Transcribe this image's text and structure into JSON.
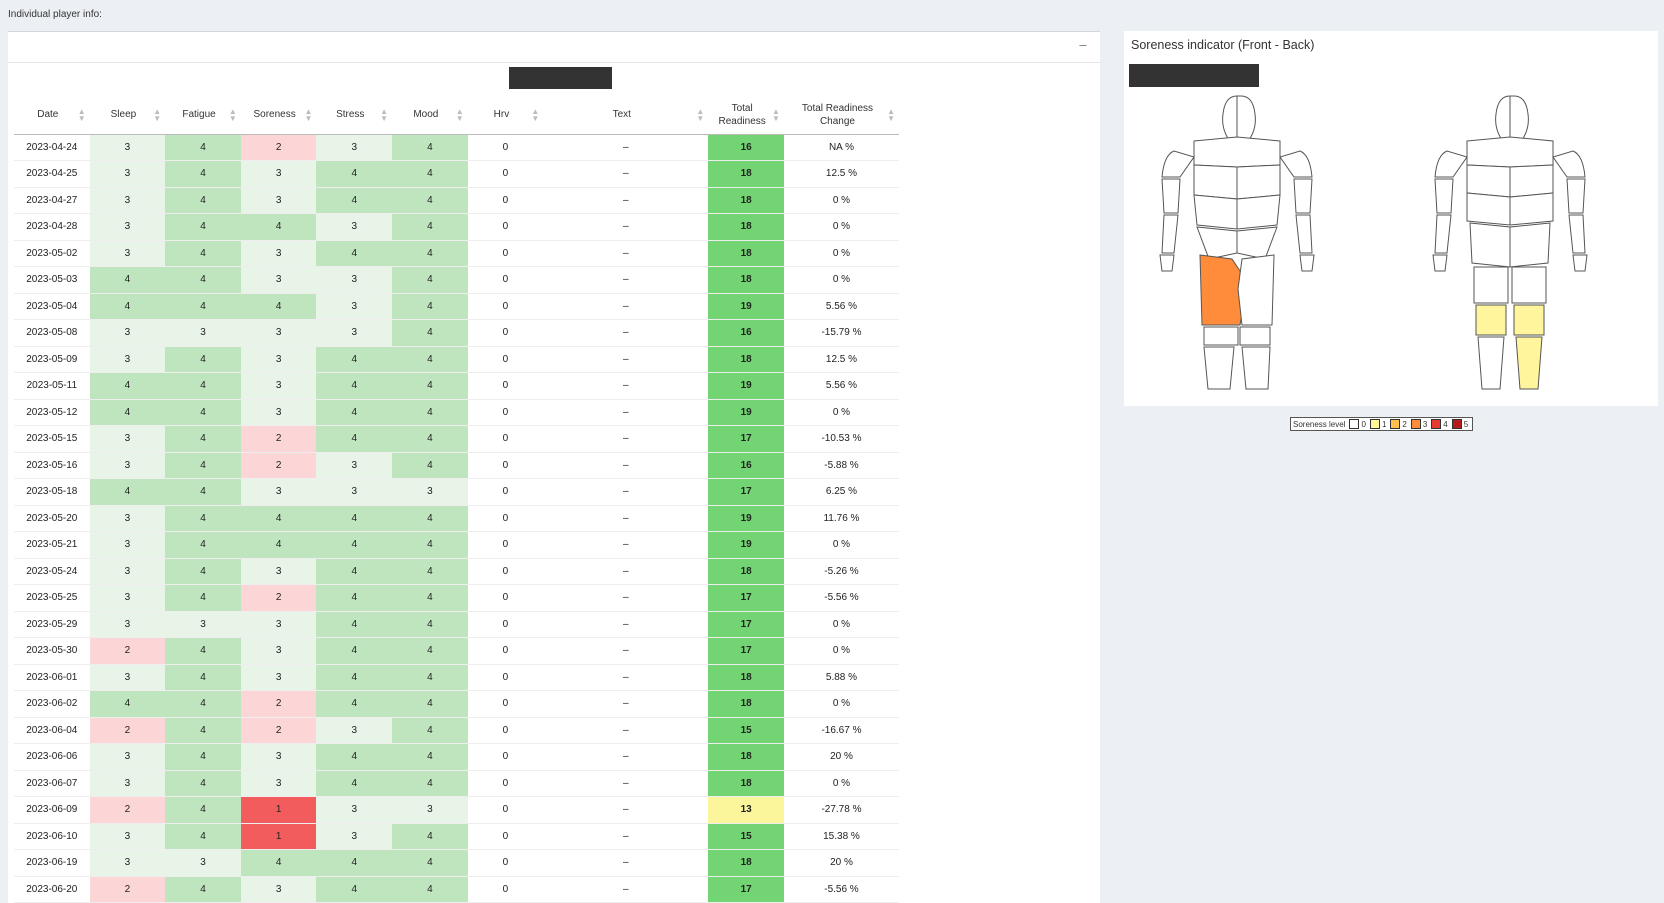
{
  "page": {
    "label": "Individual player info:"
  },
  "table": {
    "columns": [
      "Date",
      "Sleep",
      "Fatigue",
      "Soreness",
      "Stress",
      "Mood",
      "Hrv",
      "Text",
      "Total Readiness",
      "Total Readiness Change"
    ],
    "rows": [
      [
        "2023-04-24",
        "3",
        "4",
        "2",
        "3",
        "4",
        "0",
        "–",
        "16",
        "NA %"
      ],
      [
        "2023-04-25",
        "3",
        "4",
        "3",
        "4",
        "4",
        "0",
        "–",
        "18",
        "12.5 %"
      ],
      [
        "2023-04-27",
        "3",
        "4",
        "3",
        "4",
        "4",
        "0",
        "–",
        "18",
        "0 %"
      ],
      [
        "2023-04-28",
        "3",
        "4",
        "4",
        "3",
        "4",
        "0",
        "–",
        "18",
        "0 %"
      ],
      [
        "2023-05-02",
        "3",
        "4",
        "3",
        "4",
        "4",
        "0",
        "–",
        "18",
        "0 %"
      ],
      [
        "2023-05-03",
        "4",
        "4",
        "3",
        "3",
        "4",
        "0",
        "–",
        "18",
        "0 %"
      ],
      [
        "2023-05-04",
        "4",
        "4",
        "4",
        "3",
        "4",
        "0",
        "–",
        "19",
        "5.56 %"
      ],
      [
        "2023-05-08",
        "3",
        "3",
        "3",
        "3",
        "4",
        "0",
        "–",
        "16",
        "-15.79 %"
      ],
      [
        "2023-05-09",
        "3",
        "4",
        "3",
        "4",
        "4",
        "0",
        "–",
        "18",
        "12.5 %"
      ],
      [
        "2023-05-11",
        "4",
        "4",
        "3",
        "4",
        "4",
        "0",
        "–",
        "19",
        "5.56 %"
      ],
      [
        "2023-05-12",
        "4",
        "4",
        "3",
        "4",
        "4",
        "0",
        "–",
        "19",
        "0 %"
      ],
      [
        "2023-05-15",
        "3",
        "4",
        "2",
        "4",
        "4",
        "0",
        "–",
        "17",
        "-10.53 %"
      ],
      [
        "2023-05-16",
        "3",
        "4",
        "2",
        "3",
        "4",
        "0",
        "–",
        "16",
        "-5.88 %"
      ],
      [
        "2023-05-18",
        "4",
        "4",
        "3",
        "3",
        "3",
        "0",
        "–",
        "17",
        "6.25 %"
      ],
      [
        "2023-05-20",
        "3",
        "4",
        "4",
        "4",
        "4",
        "0",
        "–",
        "19",
        "11.76 %"
      ],
      [
        "2023-05-21",
        "3",
        "4",
        "4",
        "4",
        "4",
        "0",
        "–",
        "19",
        "0 %"
      ],
      [
        "2023-05-24",
        "3",
        "4",
        "3",
        "4",
        "4",
        "0",
        "–",
        "18",
        "-5.26 %"
      ],
      [
        "2023-05-25",
        "3",
        "4",
        "2",
        "4",
        "4",
        "0",
        "–",
        "17",
        "-5.56 %"
      ],
      [
        "2023-05-29",
        "3",
        "3",
        "3",
        "4",
        "4",
        "0",
        "–",
        "17",
        "0 %"
      ],
      [
        "2023-05-30",
        "2",
        "4",
        "3",
        "4",
        "4",
        "0",
        "–",
        "17",
        "0 %"
      ],
      [
        "2023-06-01",
        "3",
        "4",
        "3",
        "4",
        "4",
        "0",
        "–",
        "18",
        "5.88 %"
      ],
      [
        "2023-06-02",
        "4",
        "4",
        "2",
        "4",
        "4",
        "0",
        "–",
        "18",
        "0 %"
      ],
      [
        "2023-06-04",
        "2",
        "4",
        "2",
        "3",
        "4",
        "0",
        "–",
        "15",
        "-16.67 %"
      ],
      [
        "2023-06-06",
        "3",
        "4",
        "3",
        "4",
        "4",
        "0",
        "–",
        "18",
        "20 %"
      ],
      [
        "2023-06-07",
        "3",
        "4",
        "3",
        "4",
        "4",
        "0",
        "–",
        "18",
        "0 %"
      ],
      [
        "2023-06-09",
        "2",
        "4",
        "1",
        "3",
        "3",
        "0",
        "–",
        "13",
        "-27.78 %"
      ],
      [
        "2023-06-10",
        "3",
        "4",
        "1",
        "3",
        "4",
        "0",
        "–",
        "15",
        "15.38 %"
      ],
      [
        "2023-06-19",
        "3",
        "3",
        "4",
        "4",
        "4",
        "0",
        "–",
        "18",
        "20 %"
      ],
      [
        "2023-06-20",
        "2",
        "4",
        "3",
        "4",
        "4",
        "0",
        "–",
        "17",
        "-5.56 %"
      ]
    ],
    "colors": {
      "score_1": "#f25c5c",
      "score_2": "#fcd6d6",
      "score_3": "#e8f4e8",
      "score_4": "#bfe5bf",
      "total_high": "#72d472",
      "total_low": "#fbf59b"
    }
  },
  "soreness": {
    "title": "Soreness indicator (Front - Back)",
    "regions": [
      {
        "view": "front",
        "muscle": "left quadriceps",
        "level": 3
      },
      {
        "view": "back",
        "muscle": "left hamstring (lower)",
        "level": 1
      },
      {
        "view": "back",
        "muscle": "right hamstring (lower)",
        "level": 1
      },
      {
        "view": "back",
        "muscle": "right calf",
        "level": 1
      }
    ],
    "legend": {
      "label": "Soreness level",
      "levels": [
        {
          "value": "0",
          "color": "#ffffff"
        },
        {
          "value": "1",
          "color": "#fff59d"
        },
        {
          "value": "2",
          "color": "#ffc04d"
        },
        {
          "value": "3",
          "color": "#ff8c3a"
        },
        {
          "value": "4",
          "color": "#e53935"
        },
        {
          "value": "5",
          "color": "#b71c1c"
        }
      ]
    }
  }
}
